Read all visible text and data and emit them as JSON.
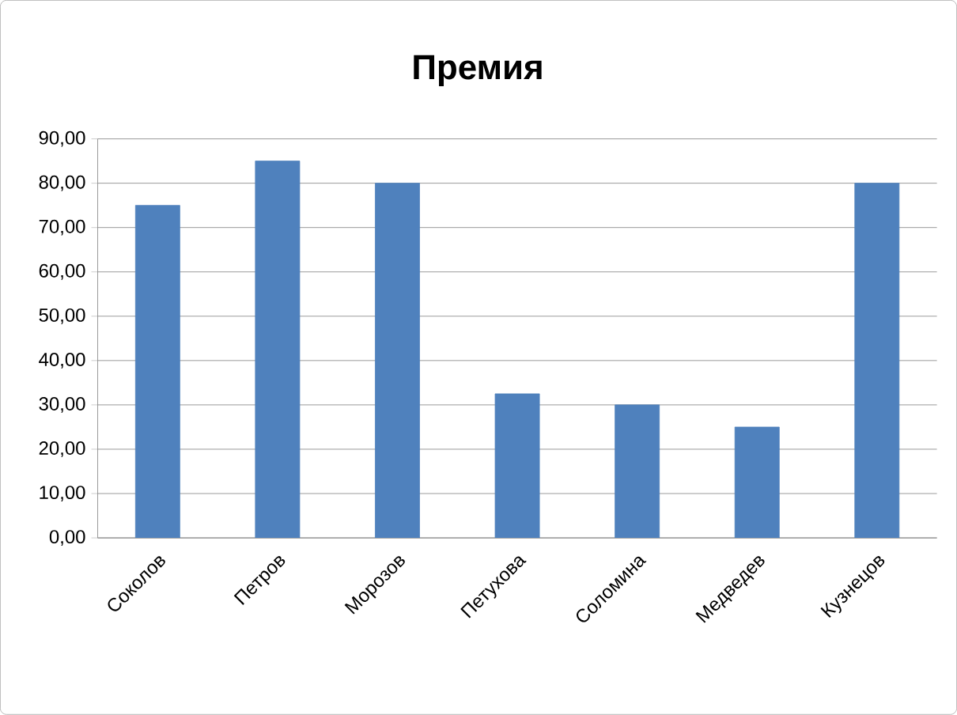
{
  "chart_data": {
    "type": "bar",
    "title": "Премия",
    "categories": [
      "Соколов",
      "Петров",
      "Морозов",
      "Петухова",
      "Соломина",
      "Медведев",
      "Кузнецов"
    ],
    "values": [
      75,
      85,
      80,
      32.5,
      30,
      25,
      80
    ],
    "color": "#4f81bd",
    "ylim": [
      0,
      90
    ],
    "yticks": [
      {
        "value": 0,
        "label": "0,00"
      },
      {
        "value": 10,
        "label": "10,00"
      },
      {
        "value": 20,
        "label": "20,00"
      },
      {
        "value": 30,
        "label": "30,00"
      },
      {
        "value": 40,
        "label": "40,00"
      },
      {
        "value": 50,
        "label": "50,00"
      },
      {
        "value": 60,
        "label": "60,00"
      },
      {
        "value": 70,
        "label": "70,00"
      },
      {
        "value": 80,
        "label": "80,00"
      },
      {
        "value": 90,
        "label": "90,00"
      }
    ],
    "grid": "y"
  }
}
